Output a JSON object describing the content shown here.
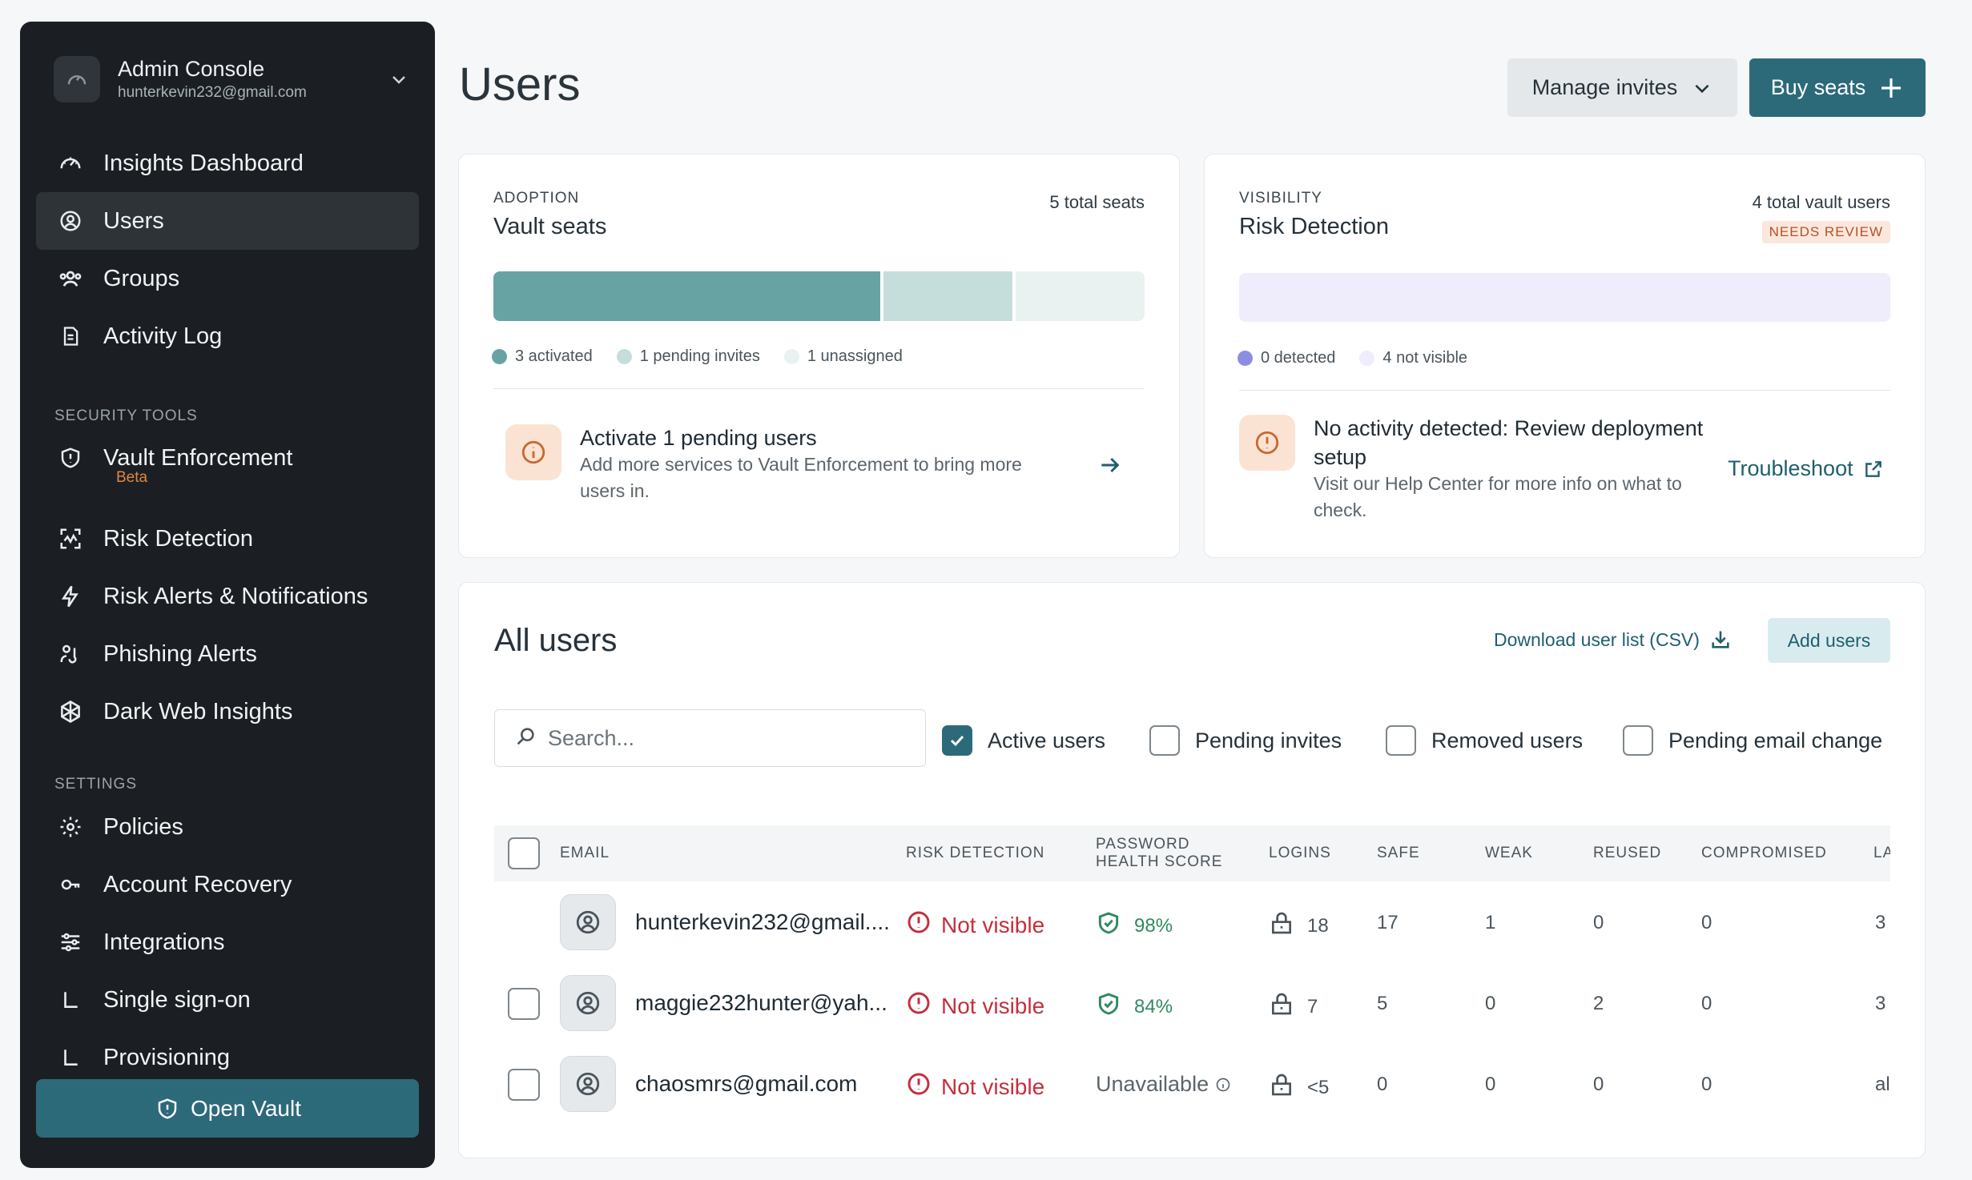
{
  "account": {
    "name": "Admin Console",
    "email": "hunterkevin232@gmail.com"
  },
  "nav": {
    "main": [
      {
        "label": "Insights Dashboard",
        "icon": "gauge-icon"
      },
      {
        "label": "Users",
        "icon": "user-circle-icon",
        "active": true
      },
      {
        "label": "Groups",
        "icon": "users-icon"
      },
      {
        "label": "Activity Log",
        "icon": "document-icon"
      }
    ],
    "security_title": "SECURITY TOOLS",
    "security": [
      {
        "label": "Vault Enforcement",
        "icon": "shield-alert-icon",
        "badge": "Beta"
      },
      {
        "label": "Risk Detection",
        "icon": "scan-icon"
      },
      {
        "label": "Risk Alerts & Notifications",
        "icon": "bolt-icon"
      },
      {
        "label": "Phishing Alerts",
        "icon": "phishing-icon"
      },
      {
        "label": "Dark Web Insights",
        "icon": "web-icon"
      }
    ],
    "settings_title": "SETTINGS",
    "settings": [
      {
        "label": "Policies",
        "icon": "gear-icon"
      },
      {
        "label": "Account Recovery",
        "icon": "key-icon"
      },
      {
        "label": "Integrations",
        "icon": "sliders-icon"
      },
      {
        "label": "Single sign-on",
        "icon": "corner-icon"
      },
      {
        "label": "Provisioning",
        "icon": "corner-icon"
      }
    ],
    "open_vault": "Open Vault"
  },
  "header": {
    "title": "Users",
    "manage_invites": "Manage invites",
    "buy_seats": "Buy seats"
  },
  "adoption": {
    "eyebrow": "ADOPTION",
    "title": "Vault seats",
    "meta": "5 total seats",
    "legend": [
      "3 activated",
      "1 pending invites",
      "1 unassigned"
    ],
    "bar": {
      "activated": 3,
      "pending": 1,
      "unassigned": 1,
      "total": 5
    },
    "colors": {
      "activated": "#68a3a4",
      "pending": "#c5dedc",
      "unassigned": "#e9f2f1"
    },
    "callout_title": "Activate 1 pending users",
    "callout_desc_1": "Add more services to Vault Enforcement to bring more",
    "callout_desc_2": "users in."
  },
  "visibility": {
    "eyebrow": "VISIBILITY",
    "title": "Risk Detection",
    "meta": "4 total vault users",
    "badge": "NEEDS REVIEW",
    "legend": [
      "0 detected",
      "4 not visible"
    ],
    "bar": {
      "detected": 0,
      "not_visible": 4
    },
    "colors": {
      "detected": "#8b8ee0",
      "not_visible": "#efedfb"
    },
    "callout_title_1": "No activity detected: Review deployment",
    "callout_title_2": "setup",
    "callout_desc_1": "Visit our Help Center for more info on what to",
    "callout_desc_2": "check.",
    "link": "Troubleshoot"
  },
  "users": {
    "title": "All users",
    "download": "Download user list (CSV)",
    "add": "Add users",
    "search_placeholder": "Search...",
    "filters": [
      {
        "label": "Active users",
        "checked": true
      },
      {
        "label": "Pending invites",
        "checked": false
      },
      {
        "label": "Removed users",
        "checked": false
      },
      {
        "label": "Pending email change",
        "checked": false
      }
    ],
    "columns": {
      "email": "EMAIL",
      "risk": "RISK DETECTION",
      "score_1": "PASSWORD",
      "score_2": "HEALTH SCORE",
      "logins": "LOGINS",
      "safe": "SAFE",
      "weak": "WEAK",
      "reused": "REUSED",
      "compromised": "COMPROMISED",
      "last": "LA"
    },
    "rows": [
      {
        "email": "hunterkevin232@gmail....",
        "risk": "Not visible",
        "score": "98%",
        "logins": "18",
        "safe": "17",
        "weak": "1",
        "reused": "0",
        "compromised": "0",
        "last": "3"
      },
      {
        "email": "maggie232hunter@yah...",
        "risk": "Not visible",
        "score": "84%",
        "logins": "7",
        "safe": "5",
        "weak": "0",
        "reused": "2",
        "compromised": "0",
        "last": "3"
      },
      {
        "email": "chaosmrs@gmail.com",
        "risk": "Not visible",
        "score": "Unavailable",
        "logins": "<5",
        "safe": "0",
        "weak": "0",
        "reused": "0",
        "compromised": "0",
        "last": "al"
      }
    ]
  }
}
